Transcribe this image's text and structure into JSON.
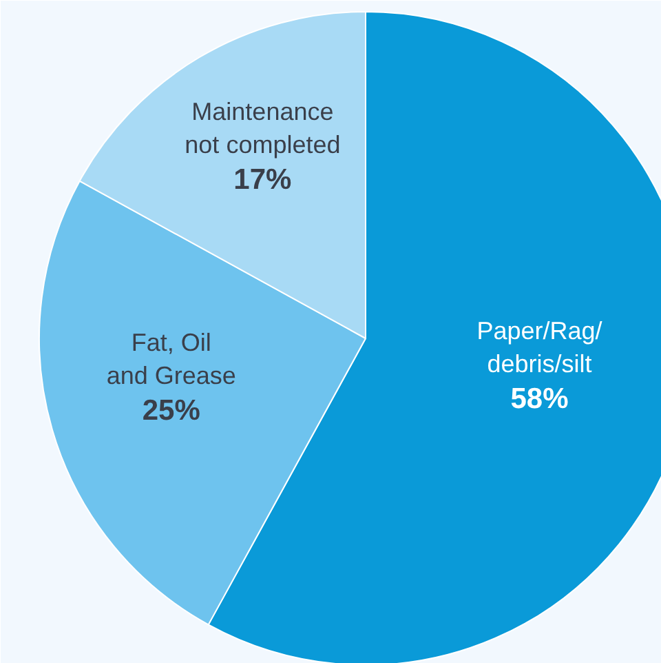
{
  "chart_data": {
    "type": "pie",
    "categories": [
      "Paper/Rag/\ndebris/silt",
      "Fat, Oil\nand Grease",
      "Maintenance\nnot completed"
    ],
    "values": [
      58,
      25,
      17
    ],
    "value_labels": [
      "58%",
      "25%",
      "17%"
    ],
    "colors": [
      "#0a9ad8",
      "#6ec3ee",
      "#a8daf5"
    ]
  }
}
